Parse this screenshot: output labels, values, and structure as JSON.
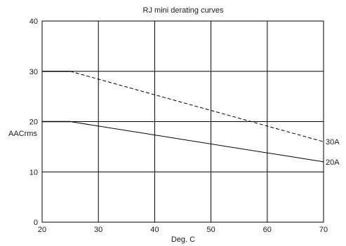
{
  "chart_data": {
    "type": "line",
    "title": "RJ mini derating curves",
    "xlabel": "Deg. C",
    "ylabel": "AACrms",
    "xlim": [
      20,
      70
    ],
    "ylim": [
      0,
      40
    ],
    "x_ticks": [
      20,
      30,
      40,
      50,
      60,
      70
    ],
    "y_ticks": [
      0,
      10,
      20,
      30,
      40
    ],
    "grid": true,
    "legend": "none",
    "series": [
      {
        "name": "30A",
        "color": "#000000",
        "segments": [
          {
            "x": [
              20,
              25
            ],
            "y": [
              30,
              30
            ],
            "style": "solid"
          },
          {
            "x": [
              25,
              70
            ],
            "y": [
              30,
              16
            ],
            "style": "dashed"
          }
        ]
      },
      {
        "name": "20A",
        "color": "#000000",
        "segments": [
          {
            "x": [
              20,
              25
            ],
            "y": [
              20,
              20
            ],
            "style": "solid"
          },
          {
            "x": [
              25,
              70
            ],
            "y": [
              20,
              12
            ],
            "style": "solid"
          }
        ]
      }
    ]
  }
}
